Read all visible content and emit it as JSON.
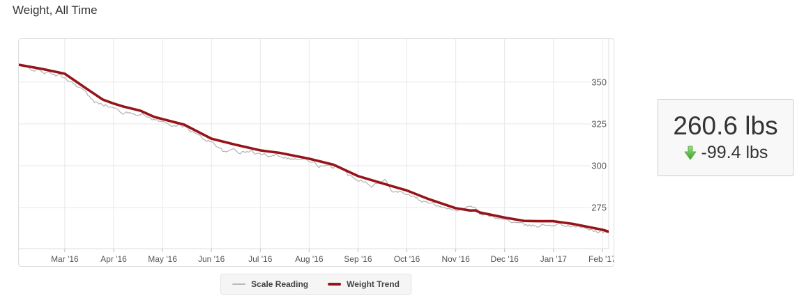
{
  "header": {
    "title": "Weight, All Time"
  },
  "summary_box": {
    "current_weight": "260.6 lbs",
    "change": "-99.4 lbs",
    "direction": "down",
    "arrow_icon": "green-down-arrow",
    "arrow_color_top": "#9fdf87",
    "arrow_color_bottom": "#38a11f",
    "arrow_stroke": "#5cb148"
  },
  "colors": {
    "grid": "#e7e7e7",
    "axis_border": "#dddddd",
    "tick": "#bbbbbb",
    "axis_label": "#555555",
    "scale_line": "#b3b3b3",
    "trend_line": "#961419",
    "legend_bg": "#f5f5f5"
  },
  "chart_data": {
    "type": "line",
    "title": "Weight, All Time",
    "xlabel": "",
    "ylabel": "",
    "grid": true,
    "legend_position": "bottom-center",
    "x_unit": "months (0 = Mar '16 tick)",
    "xlim_months": [
      -0.94,
      11.13
    ],
    "ylim": [
      250.4,
      375.8
    ],
    "y_ticks": [
      350,
      325,
      300,
      275
    ],
    "x_ticks": [
      {
        "month": 0,
        "label": "Mar '16"
      },
      {
        "month": 1,
        "label": "Apr '16"
      },
      {
        "month": 2,
        "label": "May '16"
      },
      {
        "month": 3,
        "label": "Jun '16"
      },
      {
        "month": 4,
        "label": "Jul '16"
      },
      {
        "month": 5,
        "label": "Aug '16"
      },
      {
        "month": 6,
        "label": "Sep '16"
      },
      {
        "month": 7,
        "label": "Oct '16"
      },
      {
        "month": 8,
        "label": "Nov '16"
      },
      {
        "month": 9,
        "label": "Dec '16"
      },
      {
        "month": 10,
        "label": "Jan '17"
      },
      {
        "month": 11,
        "label": "Feb '17"
      }
    ],
    "series": [
      {
        "name": "Scale Reading",
        "color": "#b3b3b3",
        "width": 1.2,
        "style": "noisy-daily",
        "derived": {
          "from": "Weight Trend",
          "description": "daily scale readings = trend + offset + jitter",
          "samples_per_month": 30.44,
          "jitter_amplitude": 0.9,
          "seed": 42,
          "offset_anchors": [
            [
              -0.94,
              -0.3
            ],
            [
              -0.4,
              -1.8
            ],
            [
              0,
              -2.2
            ],
            [
              0.35,
              -2.0
            ],
            [
              0.6,
              -5.2
            ],
            [
              0.75,
              -2.2
            ],
            [
              1.05,
              -3.2
            ],
            [
              1.25,
              -3.8
            ],
            [
              1.45,
              -2.0
            ],
            [
              1.8,
              -1.5
            ],
            [
              2.1,
              -2.0
            ],
            [
              2.5,
              -1.2
            ],
            [
              2.8,
              -2.5
            ],
            [
              3.05,
              -2.0
            ],
            [
              3.3,
              -6.8
            ],
            [
              3.45,
              -2.5
            ],
            [
              3.6,
              -4.0
            ],
            [
              3.8,
              -2.0
            ],
            [
              4.1,
              -2.5
            ],
            [
              4.35,
              -1.0
            ],
            [
              4.6,
              -2.2
            ],
            [
              4.9,
              -1.0
            ],
            [
              5.2,
              -2.8
            ],
            [
              5.5,
              -1.8
            ],
            [
              5.55,
              1.0
            ],
            [
              5.8,
              -2.0
            ],
            [
              6.1,
              -1.5
            ],
            [
              6.3,
              -2.8
            ],
            [
              6.55,
              2.2
            ],
            [
              6.7,
              -2.0
            ],
            [
              7.0,
              -1.8
            ],
            [
              7.3,
              -3.0
            ],
            [
              7.6,
              -1.8
            ],
            [
              7.9,
              -1.2
            ],
            [
              8.1,
              -0.6
            ],
            [
              8.35,
              2.6
            ],
            [
              8.5,
              -1.5
            ],
            [
              8.8,
              -0.8
            ],
            [
              9.1,
              -1.5
            ],
            [
              9.5,
              -3.0
            ],
            [
              9.8,
              -2.2
            ],
            [
              10.1,
              -1.6
            ],
            [
              10.5,
              -1.2
            ],
            [
              10.9,
              -1.5
            ],
            [
              11.13,
              -1.0
            ]
          ]
        }
      },
      {
        "name": "Weight Trend",
        "color": "#961419",
        "width": 3.6,
        "points": [
          [
            -0.94,
            360.4
          ],
          [
            -0.46,
            357.9
          ],
          [
            0,
            355.0
          ],
          [
            0.26,
            349.8
          ],
          [
            0.45,
            346.0
          ],
          [
            0.78,
            339.5
          ],
          [
            1.0,
            337.2
          ],
          [
            1.2,
            335.4
          ],
          [
            1.55,
            332.9
          ],
          [
            1.83,
            329.2
          ],
          [
            2.0,
            327.9
          ],
          [
            2.44,
            324.6
          ],
          [
            3.0,
            316.2
          ],
          [
            3.5,
            312.5
          ],
          [
            4.0,
            309.2
          ],
          [
            4.4,
            307.7
          ],
          [
            5.0,
            304.2
          ],
          [
            5.5,
            300.6
          ],
          [
            6.0,
            293.8
          ],
          [
            6.55,
            289.0
          ],
          [
            7.0,
            285.2
          ],
          [
            7.45,
            280.0
          ],
          [
            8.0,
            274.6
          ],
          [
            8.3,
            273.2
          ],
          [
            8.4,
            273.3
          ],
          [
            8.5,
            272.0
          ],
          [
            9.0,
            269.0
          ],
          [
            9.4,
            267.0
          ],
          [
            9.7,
            266.8
          ],
          [
            10.0,
            266.8
          ],
          [
            10.4,
            265.2
          ],
          [
            11.0,
            261.7
          ],
          [
            11.13,
            260.6
          ]
        ]
      }
    ],
    "summary": {
      "current": "260.6 lbs",
      "change": "-99.4 lbs",
      "direction": "down"
    }
  }
}
